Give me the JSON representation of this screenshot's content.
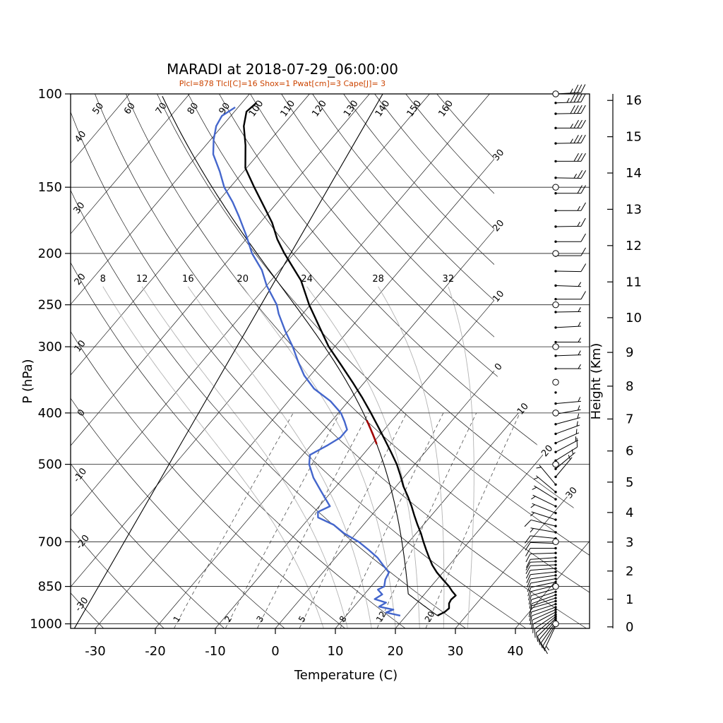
{
  "title": "MARADI at 2018-07-29_06:00:00",
  "subtitle": "Plcl=878 Tlcl[C]=16 Shox=1 Pwat[cm]=3 Cape[J]= 3",
  "axes": {
    "pressure_label": "P (hPa)",
    "temperature_label": "Temperature (C)",
    "height_label": "Height (Km)",
    "pressure_ticks": [
      100,
      150,
      200,
      250,
      300,
      400,
      500,
      700,
      850,
      1000
    ],
    "temperature_ticks": [
      -30,
      -20,
      -10,
      0,
      10,
      20,
      30,
      40
    ],
    "height_ticks": [
      0,
      1,
      2,
      3,
      4,
      5,
      6,
      7,
      8,
      9,
      10,
      11,
      12,
      13,
      14,
      15,
      16
    ]
  },
  "grid": {
    "isotherms": {
      "start": -110,
      "end": 40,
      "step": 10
    },
    "isotherm_boundary_labels": [
      {
        "t": -30,
        "label": "30"
      },
      {
        "t": -20,
        "label": "20"
      },
      {
        "t": -10,
        "label": "10"
      },
      {
        "t": 0,
        "label": "0"
      },
      {
        "t": 10,
        "label": "10"
      },
      {
        "t": 20,
        "label": "20"
      },
      {
        "t": 30,
        "label": "30"
      }
    ],
    "dry_adiabat_top_labels": [
      50,
      60,
      70,
      80,
      90,
      100,
      110,
      120,
      130,
      140,
      150,
      160
    ],
    "dry_adiabat_left_labels": [
      40,
      30,
      20,
      10,
      0,
      -10,
      -20,
      -30
    ],
    "moist_adiabats": [
      8,
      12,
      16,
      20,
      24,
      28,
      32
    ],
    "mixing_ratios": [
      1,
      2,
      3,
      5,
      8,
      12,
      20
    ]
  },
  "chart_data": {
    "type": "skewt_log_p",
    "station": "MARADI",
    "datetime": "2018-07-29_06:00:00",
    "indices": {
      "plcl_hpa": 878,
      "tlcl_c": 16,
      "showalter": 1,
      "pwat_cm": 3,
      "cape_j": 3
    },
    "pressure_range": [
      100,
      1020
    ],
    "temperature_axis_range": [
      -30,
      40
    ],
    "temperature_profile": [
      [
        965,
        25.2
      ],
      [
        950,
        25.9
      ],
      [
        935,
        26.1
      ],
      [
        915,
        25.4
      ],
      [
        900,
        25.2
      ],
      [
        884,
        25.4
      ],
      [
        868,
        24.2
      ],
      [
        850,
        23.0
      ],
      [
        825,
        21.0
      ],
      [
        800,
        19.0
      ],
      [
        775,
        17.2
      ],
      [
        750,
        15.6
      ],
      [
        725,
        14.0
      ],
      [
        700,
        12.4
      ],
      [
        675,
        10.8
      ],
      [
        650,
        9.0
      ],
      [
        625,
        7.2
      ],
      [
        600,
        5.4
      ],
      [
        575,
        3.4
      ],
      [
        550,
        1.2
      ],
      [
        525,
        -0.8
      ],
      [
        500,
        -3.0
      ],
      [
        475,
        -5.6
      ],
      [
        450,
        -8.4
      ],
      [
        425,
        -11.4
      ],
      [
        400,
        -14.6
      ],
      [
        375,
        -18.1
      ],
      [
        350,
        -22.0
      ],
      [
        325,
        -26.3
      ],
      [
        300,
        -31.0
      ],
      [
        275,
        -35.4
      ],
      [
        250,
        -40.2
      ],
      [
        225,
        -45.0
      ],
      [
        200,
        -51.6
      ],
      [
        188,
        -54.8
      ],
      [
        175,
        -58.0
      ],
      [
        162,
        -62.0
      ],
      [
        150,
        -66.0
      ],
      [
        138,
        -70.2
      ],
      [
        125,
        -73.4
      ],
      [
        115,
        -76.4
      ],
      [
        108,
        -78.0
      ],
      [
        104,
        -77.6
      ]
    ],
    "dewpoint_profile": [
      [
        965,
        19.0
      ],
      [
        952,
        16.2
      ],
      [
        940,
        17.0
      ],
      [
        928,
        14.2
      ],
      [
        912,
        14.8
      ],
      [
        898,
        12.4
      ],
      [
        880,
        13.0
      ],
      [
        862,
        11.6
      ],
      [
        850,
        12.2
      ],
      [
        825,
        11.4
      ],
      [
        800,
        11.0
      ],
      [
        775,
        9.0
      ],
      [
        750,
        7.0
      ],
      [
        725,
        4.4
      ],
      [
        700,
        1.6
      ],
      [
        675,
        -2.0
      ],
      [
        650,
        -5.0
      ],
      [
        630,
        -8.6
      ],
      [
        615,
        -9.4
      ],
      [
        600,
        -8.2
      ],
      [
        585,
        -9.6
      ],
      [
        560,
        -12.0
      ],
      [
        530,
        -15.0
      ],
      [
        500,
        -17.6
      ],
      [
        480,
        -18.8
      ],
      [
        460,
        -17.2
      ],
      [
        445,
        -16.2
      ],
      [
        430,
        -16.2
      ],
      [
        415,
        -17.8
      ],
      [
        400,
        -19.6
      ],
      [
        380,
        -23.0
      ],
      [
        360,
        -27.5
      ],
      [
        340,
        -31.0
      ],
      [
        320,
        -34.0
      ],
      [
        300,
        -37.0
      ],
      [
        280,
        -40.5
      ],
      [
        260,
        -44.0
      ],
      [
        250,
        -45.6
      ],
      [
        230,
        -50.0
      ],
      [
        215,
        -53.0
      ],
      [
        200,
        -57.0
      ],
      [
        185,
        -60.5
      ],
      [
        170,
        -64.5
      ],
      [
        160,
        -67.5
      ],
      [
        150,
        -71.0
      ],
      [
        140,
        -74.0
      ],
      [
        130,
        -77.5
      ],
      [
        122,
        -79.5
      ],
      [
        115,
        -81.0
      ],
      [
        110,
        -81.5
      ],
      [
        106,
        -80.5
      ]
    ],
    "parcel": {
      "p_surface": 965,
      "t_surface": 25.2,
      "p_lcl": 878,
      "cape_segment_hpa": [
        460,
        412
      ]
    },
    "reference_line": {
      "bottom": {
        "p": 1019,
        "t": -33.5
      },
      "top": {
        "p": 100,
        "t": -57.8
      }
    },
    "wind_circle_levels": [
      100,
      150,
      200,
      250,
      300,
      350,
      400,
      500,
      700,
      850,
      1000
    ],
    "winds": [
      [
        1008,
        5,
        205
      ],
      [
        1000,
        8,
        210
      ],
      [
        992,
        10,
        215
      ],
      [
        984,
        12,
        220
      ],
      [
        976,
        10,
        225
      ],
      [
        968,
        12,
        230
      ],
      [
        960,
        10,
        236
      ],
      [
        950,
        12,
        242
      ],
      [
        940,
        10,
        246
      ],
      [
        930,
        12,
        250
      ],
      [
        918,
        10,
        252
      ],
      [
        906,
        12,
        254
      ],
      [
        894,
        10,
        252
      ],
      [
        882,
        12,
        250
      ],
      [
        870,
        10,
        252
      ],
      [
        858,
        12,
        254
      ],
      [
        846,
        10,
        256
      ],
      [
        834,
        12,
        258
      ],
      [
        822,
        10,
        260
      ],
      [
        810,
        12,
        262
      ],
      [
        798,
        10,
        264
      ],
      [
        786,
        12,
        266
      ],
      [
        774,
        10,
        268
      ],
      [
        762,
        12,
        268
      ],
      [
        750,
        10,
        266
      ],
      [
        735,
        8,
        268
      ],
      [
        720,
        10,
        270
      ],
      [
        705,
        8,
        272
      ],
      [
        690,
        8,
        276
      ],
      [
        672,
        6,
        280
      ],
      [
        654,
        8,
        284
      ],
      [
        636,
        6,
        288
      ],
      [
        618,
        5,
        292
      ],
      [
        600,
        5,
        296
      ],
      [
        582,
        4,
        302
      ],
      [
        564,
        4,
        310
      ],
      [
        546,
        3,
        320
      ],
      [
        528,
        5,
        40
      ],
      [
        510,
        6,
        50
      ],
      [
        492,
        8,
        58
      ],
      [
        474,
        5,
        62
      ],
      [
        456,
        6,
        66
      ],
      [
        438,
        5,
        70
      ],
      [
        420,
        6,
        75
      ],
      [
        402,
        5,
        80
      ],
      [
        384,
        3,
        85
      ],
      [
        366,
        0,
        0
      ],
      [
        348,
        2,
        0
      ],
      [
        330,
        3,
        90
      ],
      [
        312,
        4,
        88
      ],
      [
        294,
        4,
        90
      ],
      [
        276,
        5,
        87
      ],
      [
        258,
        6,
        89
      ],
      [
        244,
        8,
        90
      ],
      [
        230,
        6,
        92
      ],
      [
        216,
        8,
        91
      ],
      [
        202,
        10,
        90
      ],
      [
        190,
        12,
        90
      ],
      [
        178,
        14,
        89
      ],
      [
        166,
        17,
        90
      ],
      [
        154,
        21,
        90
      ],
      [
        144,
        24,
        91
      ],
      [
        134,
        28,
        90
      ],
      [
        124,
        33,
        89
      ],
      [
        116,
        37,
        90
      ],
      [
        109,
        41,
        89
      ],
      [
        104,
        43,
        88
      ],
      [
        100,
        33,
        87
      ]
    ]
  },
  "colors": {
    "temperature": "#000000",
    "dewpoint": "#4466cc",
    "parcel": "#000000",
    "cape": "#a00000",
    "subtitle": "#cc4400",
    "moist_adiabat": "#b3b3b3",
    "mixing_ratio": "#4d4d4d"
  }
}
